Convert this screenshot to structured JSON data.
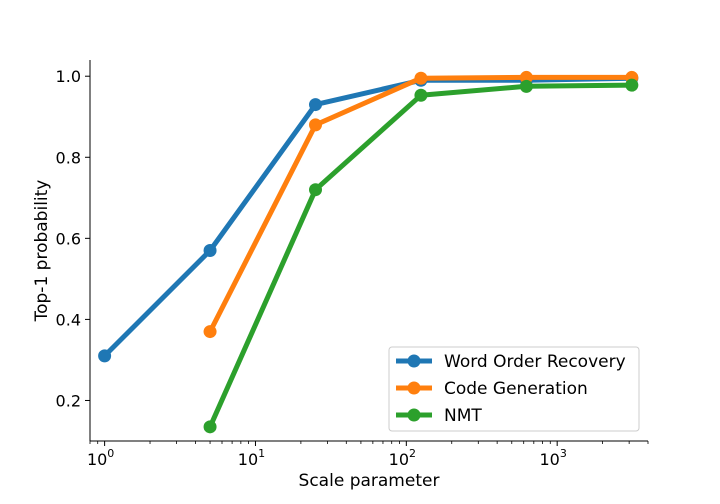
{
  "chart_data": {
    "type": "line",
    "title": "",
    "xlabel": "Scale parameter",
    "ylabel": "Top-1 probability",
    "xscale": "log",
    "xlim": [
      0.8,
      4000
    ],
    "ylim": [
      0.1,
      1.04
    ],
    "x_ticks": [
      {
        "value": 1,
        "base": "10",
        "exp": "0"
      },
      {
        "value": 10,
        "base": "10",
        "exp": "1"
      },
      {
        "value": 100,
        "base": "10",
        "exp": "2"
      },
      {
        "value": 1000,
        "base": "10",
        "exp": "3"
      }
    ],
    "y_ticks": [
      {
        "value": 0.2,
        "label": "0.2"
      },
      {
        "value": 0.4,
        "label": "0.4"
      },
      {
        "value": 0.6,
        "label": "0.6"
      },
      {
        "value": 0.8,
        "label": "0.8"
      },
      {
        "value": 1.0,
        "label": "1.0"
      }
    ],
    "grid": false,
    "legend_position": "bottom-right",
    "series": [
      {
        "name": "Word Order Recovery",
        "color": "#1f77b4",
        "x": [
          1,
          5,
          25,
          125,
          625,
          3125
        ],
        "y": [
          0.31,
          0.57,
          0.93,
          0.99,
          0.99,
          0.995
        ]
      },
      {
        "name": "Code Generation",
        "color": "#ff7f0e",
        "x": [
          5,
          25,
          125,
          625,
          3125
        ],
        "y": [
          0.37,
          0.88,
          0.995,
          0.997,
          0.997
        ]
      },
      {
        "name": "NMT",
        "color": "#2ca02c",
        "x": [
          5,
          25,
          125,
          625,
          3125
        ],
        "y": [
          0.135,
          0.72,
          0.953,
          0.975,
          0.978
        ]
      }
    ]
  }
}
